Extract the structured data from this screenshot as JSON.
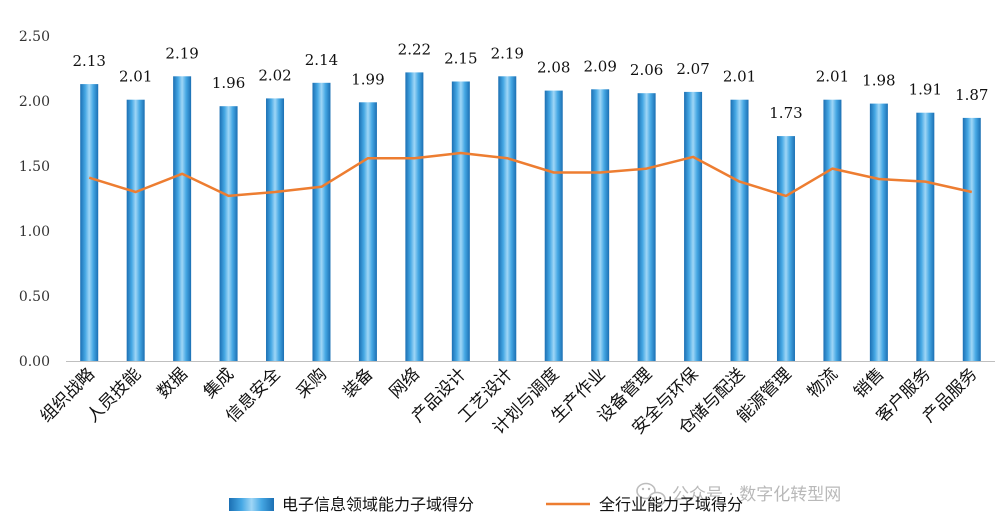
{
  "chart_data": {
    "type": "bar",
    "categories": [
      "组织战略",
      "人员技能",
      "数据",
      "集成",
      "信息安全",
      "采购",
      "装备",
      "网络",
      "产品设计",
      "工艺设计",
      "计划与调度",
      "生产作业",
      "设备管理",
      "安全与环保",
      "仓储与配送",
      "能源管理",
      "物流",
      "销售",
      "客户服务",
      "产品服务"
    ],
    "series": [
      {
        "name": "电子信息领域能力子域得分",
        "type": "bar",
        "values": [
          2.13,
          2.01,
          2.19,
          1.96,
          2.02,
          2.14,
          1.99,
          2.22,
          2.15,
          2.19,
          2.08,
          2.09,
          2.06,
          2.07,
          2.01,
          1.73,
          2.01,
          1.98,
          1.91,
          1.87
        ],
        "labels": [
          "2.13",
          "2.01",
          "2.19",
          "1.96",
          "2.02",
          "2.14",
          "1.99",
          "2.22",
          "2.15",
          "2.19",
          "2.08",
          "2.09",
          "2.06",
          "2.07",
          "2.01",
          "1.73",
          "2.01",
          "1.98",
          "1.91",
          "1.87"
        ],
        "color": "#2e8fd0"
      },
      {
        "name": "全行业能力子域得分",
        "type": "line",
        "values": [
          1.41,
          1.3,
          1.44,
          1.27,
          1.3,
          1.34,
          1.56,
          1.56,
          1.6,
          1.56,
          1.45,
          1.45,
          1.48,
          1.57,
          1.38,
          1.27,
          1.48,
          1.4,
          1.38,
          1.3
        ],
        "color": "#ed7d31"
      }
    ],
    "ylim": [
      0,
      2.5
    ],
    "yticks": [
      "0.00",
      "0.50",
      "1.00",
      "1.50",
      "2.00",
      "2.50"
    ],
    "ytick_values": [
      0,
      0.5,
      1.0,
      1.5,
      2.0,
      2.5
    ],
    "grid": false,
    "legend_position": "bottom-center",
    "watermark": "公众号 · 数字化转型网"
  }
}
